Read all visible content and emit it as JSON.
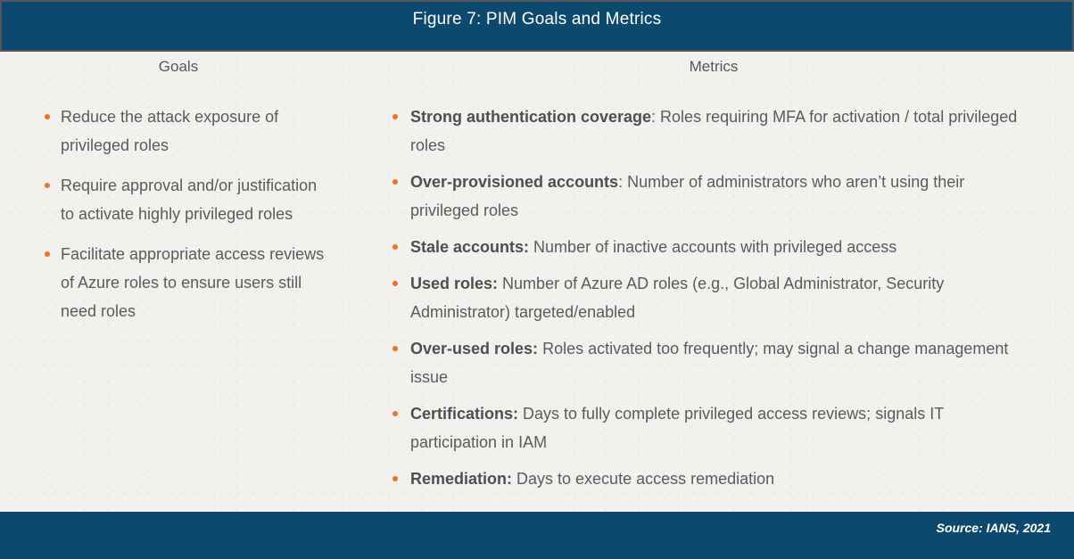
{
  "figure": {
    "title": "Figure 7: PIM Goals and Metrics",
    "source": "Source: IANS, 2021"
  },
  "goals": {
    "header": "Goals",
    "items": [
      "Reduce the attack exposure of privileged roles",
      "Require approval and/or justification to activate highly privileged roles",
      "Facilitate appropriate access reviews of Azure roles to ensure users still need roles"
    ]
  },
  "metrics": {
    "header": "Metrics",
    "items": [
      {
        "bold": "Strong authentication coverage",
        "rest": ": Roles requiring MFA for activation / total privileged roles"
      },
      {
        "bold": "Over-provisioned accounts",
        "rest": ": Number of administrators who aren’t using their privileged roles"
      },
      {
        "bold": "Stale accounts:",
        "rest": " Number of inactive accounts with privileged access"
      },
      {
        "bold": "Used roles:",
        "rest": " Number of Azure AD roles (e.g., Global Administrator, Security Administrator) targeted/enabled"
      },
      {
        "bold": "Over-used roles:",
        "rest": " Roles activated too frequently; may signal a change management issue"
      },
      {
        "bold": "Certifications:",
        "rest": " Days to fully complete privileged access reviews; signals IT participation in IAM"
      },
      {
        "bold": "Remediation:",
        "rest": " Days to execute access remediation"
      }
    ]
  },
  "colors": {
    "bar_blue": "#0d496e",
    "border_gray": "#57585a",
    "body_text_gray": "#5a5b5e",
    "bullet_orange": "#e9752c",
    "background_paper": "#f2f1ee",
    "title_text": "#ffffff"
  }
}
